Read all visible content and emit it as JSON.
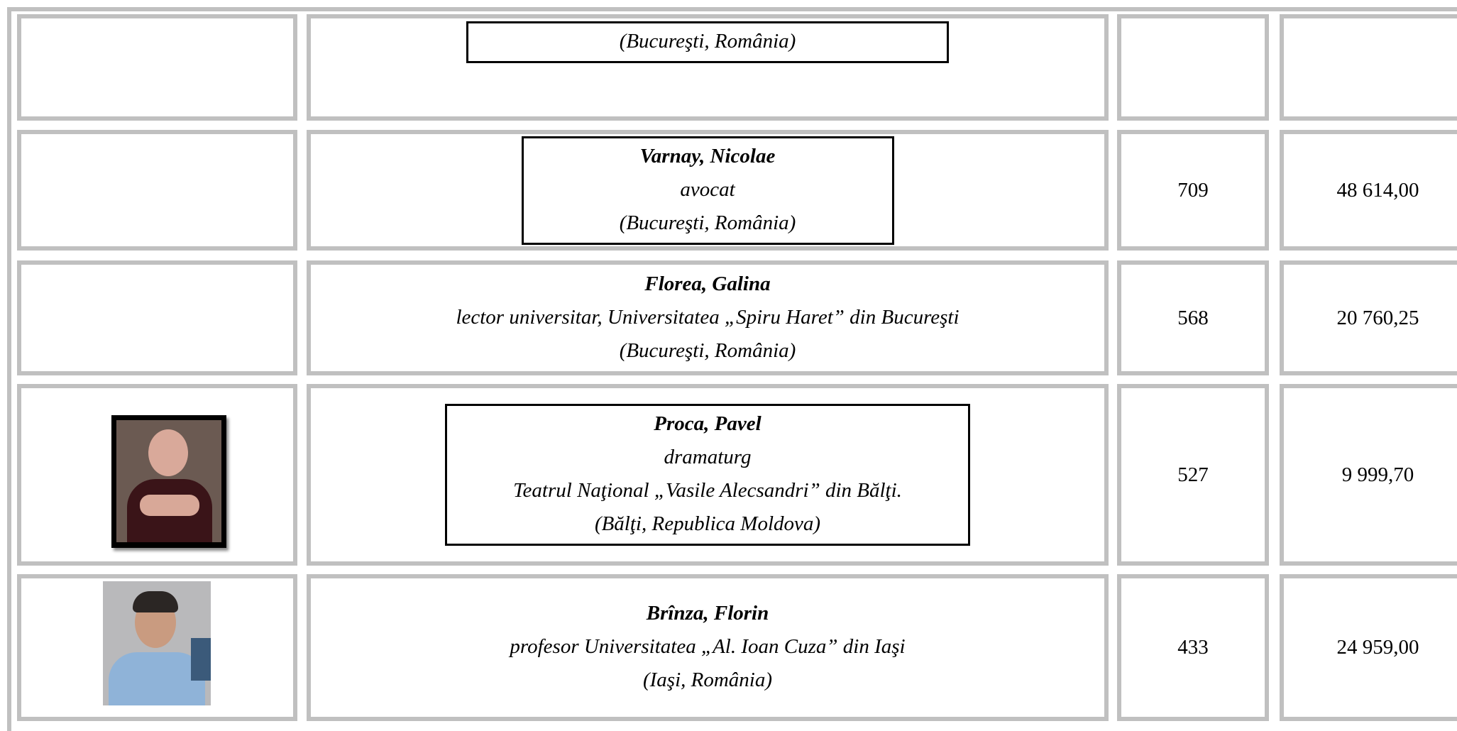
{
  "table": {
    "rows": [
      {
        "lines": [
          "(Bucureşti, România)"
        ]
      },
      {
        "name": "Varnay, Nicolae",
        "lines": [
          "avocat",
          "(Bucureşti, România)"
        ],
        "count": 709,
        "amount": "48 614,00"
      },
      {
        "name": "Florea, Galina",
        "lines": [
          "lector universitar, Universitatea „Spiru Haret” din Bucureşti",
          "(Bucureşti, România)"
        ],
        "count": 568,
        "amount": "20 760,25"
      },
      {
        "name": "Proca, Pavel",
        "lines": [
          "dramaturg",
          "Teatrul Naţional „Vasile Alecsandri” din Bălţi.",
          "(Bălţi, Republica Moldova)"
        ],
        "count": 527,
        "amount": "9 999,70"
      },
      {
        "name": "Brînza, Florin",
        "lines": [
          "profesor Universitatea „Al. Ioan Cuza” din Iaşi",
          "(Iaşi, România)"
        ],
        "count": 433,
        "amount": "24 959,00"
      }
    ]
  }
}
